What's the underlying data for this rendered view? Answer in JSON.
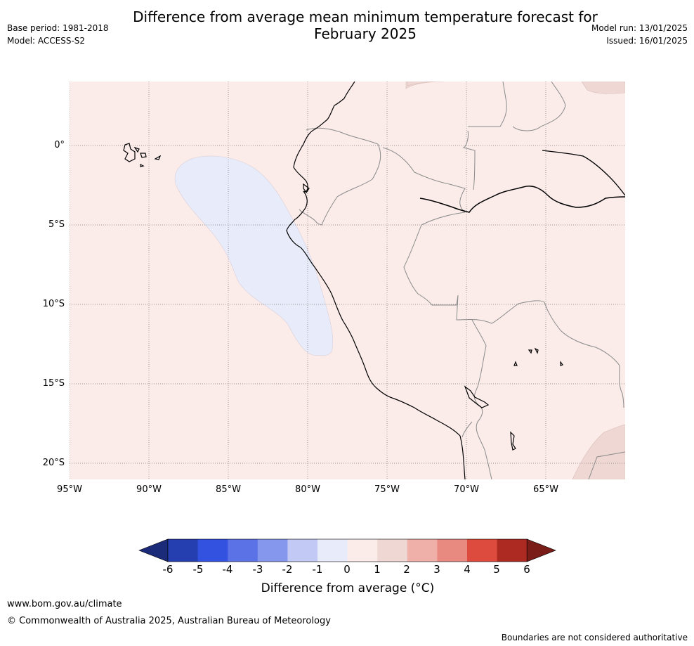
{
  "title_line1": "Difference from average mean minimum temperature forecast for",
  "title_line2": "February 2025",
  "base_period": "Base period: 1981-2018",
  "model": "Model: ACCESS-S2",
  "model_run": "Model run: 13/01/2025",
  "issued": "Issued: 16/01/2025",
  "map": {
    "lat_labels": [
      "0°",
      "5°S",
      "10°S",
      "15°S",
      "20°S"
    ],
    "lon_labels": [
      "95°W",
      "90°W",
      "85°W",
      "80°W",
      "75°W",
      "70°W",
      "65°W"
    ],
    "background_color": "#fbecea",
    "anomaly_negative_color": "#e8ecfa",
    "anomaly_warm_color": "#efd8d4",
    "coast_color": "#000000",
    "border_color": "#8a8a8a"
  },
  "colorbar": {
    "tick_labels": [
      "-6",
      "-5",
      "-4",
      "-3",
      "-2",
      "-1",
      "0",
      "1",
      "2",
      "3",
      "4",
      "5",
      "6"
    ],
    "colors": [
      "#1c2a7a",
      "#263fb0",
      "#3352e0",
      "#5a72e6",
      "#8597ec",
      "#c2c9f4",
      "#e8ecfa",
      "#fbecea",
      "#efd8d4",
      "#efb0aa",
      "#e88a80",
      "#dc4b3e",
      "#ad2a22",
      "#7a1c18"
    ],
    "title": "Difference from average (°C)"
  },
  "footer": {
    "url": "www.bom.gov.au/climate",
    "copyright": "© Commonwealth of Australia 2025, Australian Bureau of Meteorology",
    "disclaimer": "Boundaries are not considered authoritative"
  }
}
